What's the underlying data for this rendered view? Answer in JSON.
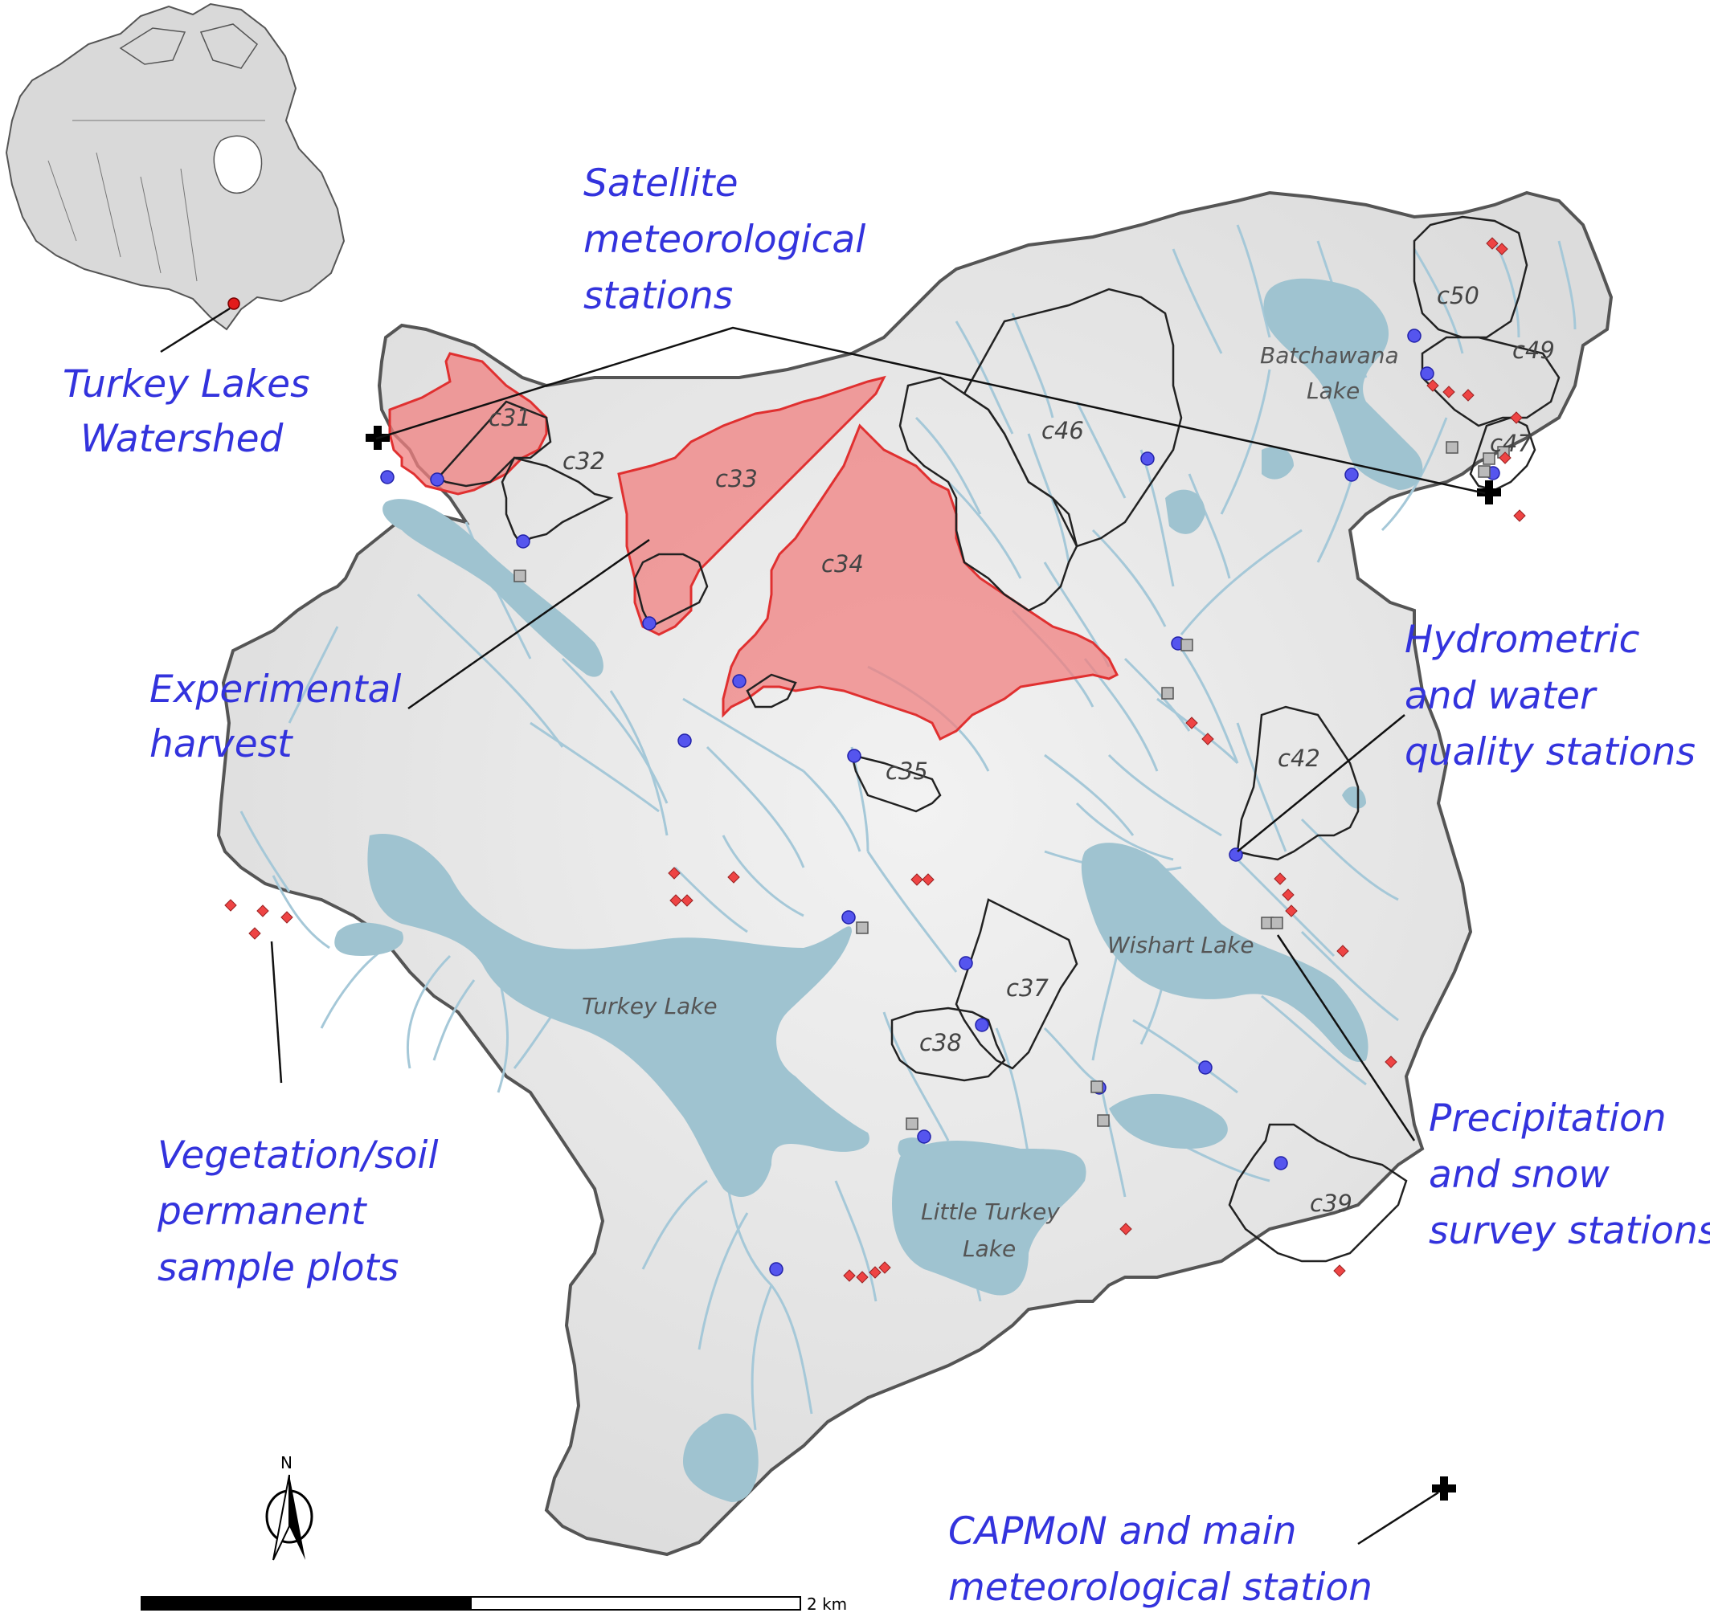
{
  "labels": {
    "turkey_lakes_1": "Turkey Lakes",
    "turkey_lakes_2": "Watershed",
    "satellite_1": "Satellite",
    "satellite_2": "meteorological",
    "satellite_3": "stations",
    "harvest_1": "Experimental",
    "harvest_2": "harvest",
    "hydro_1": "Hydrometric",
    "hydro_2": "and water",
    "hydro_3": "quality stations",
    "precip_1": "Precipitation",
    "precip_2": "and snow",
    "precip_3": "survey stations",
    "veg_1": "Vegetation/soil",
    "veg_2": "permanent",
    "veg_3": "sample plots",
    "capmon_1": "CAPMoN and main",
    "capmon_2": "meteorological station"
  },
  "subcatchments": [
    "c31",
    "c32",
    "c33",
    "c34",
    "c35",
    "c37",
    "c38",
    "c39",
    "c42",
    "c46",
    "c47",
    "c49",
    "c50"
  ],
  "lakes": {
    "turkey": "Turkey Lake",
    "little_turkey_1": "Little Turkey",
    "little_turkey_2": "Lake",
    "wishart": "Wishart Lake",
    "batchawana_1": "Batchawana",
    "batchawana_2": "Lake"
  },
  "scale_bar": {
    "label": "2 km"
  },
  "north_arrow": {
    "label": "N"
  },
  "colors": {
    "watershed_fill": "#e4e4e4",
    "watershed_outline": "#555555",
    "lake": "#9fc3d0",
    "stream": "#a5c8d8",
    "harvest_fill": "#f08080",
    "harvest_outline": "#e03030",
    "hydrometric_station": "#5555ee",
    "precip_station": "#bbbbbb",
    "veg_plot": "#ee4444",
    "label_blue": "#3333dd"
  },
  "icons": [
    "canada-inset-map",
    "north-arrow-icon",
    "scale-bar",
    "met-station-icon"
  ]
}
